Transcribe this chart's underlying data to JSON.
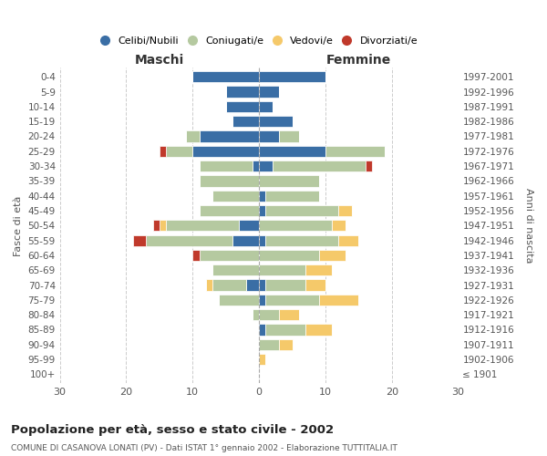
{
  "age_groups": [
    "100+",
    "95-99",
    "90-94",
    "85-89",
    "80-84",
    "75-79",
    "70-74",
    "65-69",
    "60-64",
    "55-59",
    "50-54",
    "45-49",
    "40-44",
    "35-39",
    "30-34",
    "25-29",
    "20-24",
    "15-19",
    "10-14",
    "5-9",
    "0-4"
  ],
  "birth_years": [
    "≤ 1901",
    "1902-1906",
    "1907-1911",
    "1912-1916",
    "1917-1921",
    "1922-1926",
    "1927-1931",
    "1932-1936",
    "1937-1941",
    "1942-1946",
    "1947-1951",
    "1952-1956",
    "1957-1961",
    "1962-1966",
    "1967-1971",
    "1972-1976",
    "1977-1981",
    "1982-1986",
    "1987-1991",
    "1992-1996",
    "1997-2001"
  ],
  "males": {
    "celibi": [
      0,
      0,
      0,
      0,
      0,
      0,
      2,
      0,
      0,
      4,
      3,
      0,
      0,
      0,
      1,
      10,
      9,
      4,
      5,
      5,
      10
    ],
    "coniugati": [
      0,
      0,
      0,
      0,
      1,
      6,
      5,
      7,
      9,
      13,
      11,
      9,
      7,
      9,
      8,
      4,
      2,
      0,
      0,
      0,
      0
    ],
    "vedovi": [
      0,
      0,
      0,
      0,
      0,
      0,
      1,
      0,
      0,
      0,
      1,
      0,
      0,
      0,
      0,
      0,
      0,
      0,
      0,
      0,
      0
    ],
    "divorziati": [
      0,
      0,
      0,
      0,
      0,
      0,
      0,
      0,
      1,
      2,
      1,
      0,
      0,
      0,
      0,
      1,
      0,
      0,
      0,
      0,
      0
    ]
  },
  "females": {
    "nubili": [
      0,
      0,
      0,
      1,
      0,
      1,
      1,
      0,
      0,
      1,
      0,
      1,
      1,
      0,
      2,
      10,
      3,
      5,
      2,
      3,
      10
    ],
    "coniugate": [
      0,
      0,
      3,
      6,
      3,
      8,
      6,
      7,
      9,
      11,
      11,
      11,
      8,
      9,
      14,
      9,
      3,
      0,
      0,
      0,
      0
    ],
    "vedove": [
      0,
      1,
      2,
      4,
      3,
      6,
      3,
      4,
      4,
      3,
      2,
      2,
      0,
      0,
      0,
      0,
      0,
      0,
      0,
      0,
      0
    ],
    "divorziate": [
      0,
      0,
      0,
      0,
      0,
      0,
      0,
      0,
      0,
      0,
      0,
      0,
      0,
      0,
      1,
      0,
      0,
      0,
      0,
      0,
      0
    ]
  },
  "colors": {
    "celibi": "#3a6ea5",
    "coniugati": "#b5c9a0",
    "vedovi": "#f5c96a",
    "divorziati": "#c0392b"
  },
  "xlim": 30,
  "title": "Popolazione per età, sesso e stato civile - 2002",
  "subtitle": "COMUNE DI CASANOVA LONATI (PV) - Dati ISTAT 1° gennaio 2002 - Elaborazione TUTTITALIA.IT",
  "ylabel": "Fasce di età",
  "ylabel_right": "Anni di nascita",
  "xlabel_left": "Maschi",
  "xlabel_right": "Femmine",
  "legend_labels": [
    "Celibi/Nubili",
    "Coniugati/e",
    "Vedovi/e",
    "Divorziati/e"
  ],
  "background_color": "#ffffff",
  "grid_color": "#cccccc"
}
